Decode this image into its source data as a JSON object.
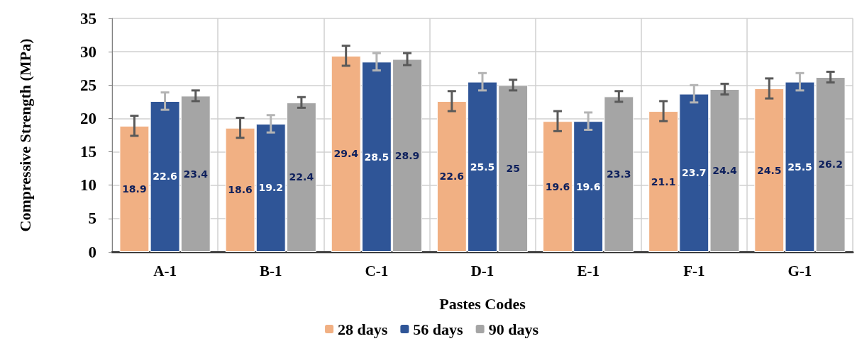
{
  "chart_data": {
    "type": "bar",
    "xlabel": "Pastes Codes",
    "ylabel": "Compressive Strength (MPa)",
    "categories": [
      "A-1",
      "B-1",
      "C-1",
      "D-1",
      "E-1",
      "F-1",
      "G-1"
    ],
    "series": [
      {
        "name": "28 days",
        "color": "#f1b083",
        "values": [
          18.9,
          18.6,
          29.4,
          22.6,
          19.6,
          21.1,
          24.5
        ],
        "errors": [
          1.5,
          1.5,
          1.5,
          1.5,
          1.5,
          1.5,
          1.5
        ]
      },
      {
        "name": "56 days",
        "color": "#2f5597",
        "values": [
          22.6,
          19.2,
          28.5,
          25.5,
          19.6,
          23.7,
          25.5
        ],
        "errors": [
          1.3,
          1.3,
          1.3,
          1.3,
          1.3,
          1.3,
          1.3
        ]
      },
      {
        "name": "90 days",
        "color": "#a5a5a5",
        "values": [
          23.4,
          22.4,
          28.9,
          25,
          23.3,
          24.4,
          26.2
        ],
        "errors": [
          0.8,
          0.8,
          0.9,
          0.8,
          0.8,
          0.8,
          0.8
        ]
      }
    ],
    "ylim": [
      0,
      35
    ],
    "yticks": [
      0,
      5,
      10,
      15,
      20,
      25,
      30,
      35
    ],
    "grid": true,
    "legend": "bottom",
    "data_labels": true
  }
}
